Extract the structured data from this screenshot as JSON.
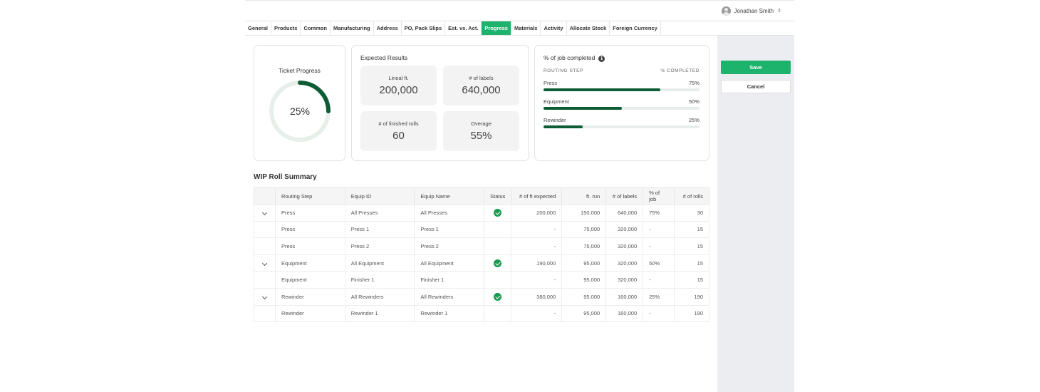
{
  "user": {
    "name": "Jonathan Smith"
  },
  "tabs": [
    {
      "label": "General"
    },
    {
      "label": "Products"
    },
    {
      "label": "Common"
    },
    {
      "label": "Manufacturing"
    },
    {
      "label": "Address"
    },
    {
      "label": "PO, Pack Slips"
    },
    {
      "label": "Est. vs. Act."
    },
    {
      "label": "Progress",
      "active": true
    },
    {
      "label": "Materials"
    },
    {
      "label": "Activity"
    },
    {
      "label": "Allocate Stock"
    },
    {
      "label": "Foreign Currency"
    }
  ],
  "actions": {
    "save_label": "Save",
    "cancel_label": "Cancel"
  },
  "ticket_progress": {
    "title": "Ticket Progress",
    "value_label": "25%",
    "fraction": 0.25
  },
  "expected_results": {
    "title": "Expected Results",
    "stats": [
      {
        "label": "Lineal ft.",
        "value": "200,000"
      },
      {
        "label": "# of labels",
        "value": "640,000"
      },
      {
        "label": "# of finished rolls",
        "value": "60"
      },
      {
        "label": "Overage",
        "value": "55%"
      }
    ]
  },
  "job_completed": {
    "title": "% of job completed",
    "col_step": "ROUTING STEP",
    "col_pct": "% COMPLETED",
    "steps": [
      {
        "name": "Press",
        "pct_label": "75%",
        "fraction": 0.75
      },
      {
        "name": "Equipment",
        "pct_label": "50%",
        "fraction": 0.5
      },
      {
        "name": "Rewinder",
        "pct_label": "25%",
        "fraction": 0.25
      }
    ]
  },
  "wip": {
    "title": "WIP Roll Summary",
    "columns": [
      "Routing Step",
      "Equip ID",
      "Equip Name",
      "Status",
      "# of ft expected",
      "ft. run",
      "# of labels",
      "% of job",
      "# of rolls"
    ],
    "rows": [
      {
        "expandable": true,
        "step": "Press",
        "equip_id": "All Presses",
        "equip_name": "All Presses",
        "status": "check",
        "ft_expected": "200,000",
        "ft_run": "150,000",
        "labels": "640,000",
        "pct_job": "75%",
        "rolls": "30"
      },
      {
        "expandable": false,
        "step": "Press",
        "equip_id": "Press 1",
        "equip_name": "Press 1",
        "status": "",
        "ft_expected": "-",
        "ft_run": "75,000",
        "labels": "320,000",
        "pct_job": "-",
        "rolls": "15"
      },
      {
        "expandable": false,
        "step": "Press",
        "equip_id": "Press 2",
        "equip_name": "Press 2",
        "status": "",
        "ft_expected": "-",
        "ft_run": "75,000",
        "labels": "320,000",
        "pct_job": "-",
        "rolls": "15"
      },
      {
        "expandable": true,
        "step": "Equipment",
        "equip_id": "All Equipment",
        "equip_name": "All Equipment",
        "status": "check",
        "ft_expected": "190,000",
        "ft_run": "95,000",
        "labels": "320,000",
        "pct_job": "50%",
        "rolls": "15"
      },
      {
        "expandable": false,
        "step": "Equipment",
        "equip_id": "Finisher 1",
        "equip_name": "Finisher 1",
        "status": "",
        "ft_expected": "-",
        "ft_run": "95,000",
        "labels": "320,000",
        "pct_job": "-",
        "rolls": "15"
      },
      {
        "expandable": true,
        "step": "Rewinder",
        "equip_id": "All Rewinders",
        "equip_name": "All Rewinders",
        "status": "check",
        "ft_expected": "380,000",
        "ft_run": "95,000",
        "labels": "160,000",
        "pct_job": "25%",
        "rolls": "190"
      },
      {
        "expandable": false,
        "step": "Rewinder",
        "equip_id": "Rewinder 1",
        "equip_name": "Rewinder 1",
        "status": "",
        "ft_expected": "-",
        "ft_run": "95,000",
        "labels": "160,000",
        "pct_job": "-",
        "rolls": "190"
      }
    ]
  },
  "colors": {
    "accent": "#1db36d",
    "progress_dark": "#0e5c35",
    "donut_track": "#e6efea",
    "status_ok": "#1a9a4f"
  }
}
